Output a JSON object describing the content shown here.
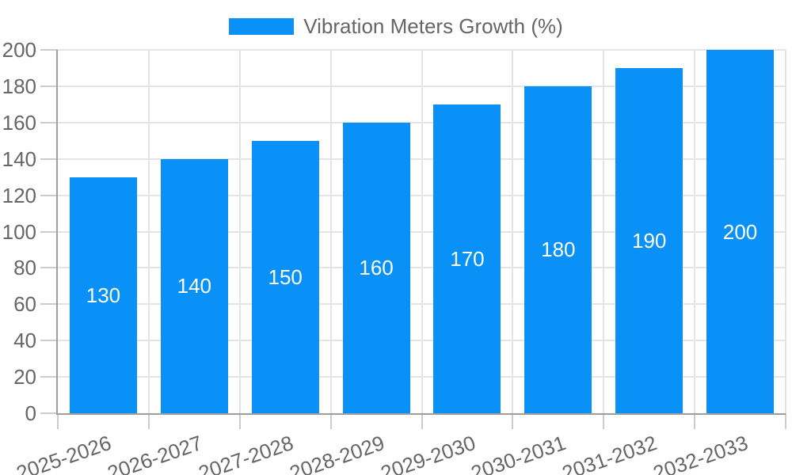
{
  "legend": {
    "label": "Vibration Meters Growth (%)"
  },
  "chart_data": {
    "type": "bar",
    "title": "Vibration Meters Growth (%)",
    "categories": [
      "2025-2026",
      "2026-2027",
      "2027-2028",
      "2028-2029",
      "2029-2030",
      "2030-2031",
      "2031-2032",
      "2032-2033"
    ],
    "series": [
      {
        "name": "Vibration Meters Growth (%)",
        "values": [
          130,
          140,
          150,
          160,
          170,
          180,
          190,
          200
        ]
      }
    ],
    "ylim": [
      0,
      200
    ],
    "ytick_step": 20,
    "ytick_labels": [
      "0",
      "20",
      "40",
      "60",
      "80",
      "100",
      "120",
      "140",
      "160",
      "180",
      "200"
    ],
    "bar_labels": [
      "130",
      "140",
      "150",
      "160",
      "170",
      "180",
      "190",
      "200"
    ],
    "grid": true,
    "legend_position": "top",
    "xlabel": "",
    "ylabel": "",
    "colors": {
      "bar": "#0991f8",
      "bar_label": "#ffffff",
      "axis_text": "#666666",
      "gridline": "#e4e4e4",
      "tick": "#cccccc",
      "axis_line": "#9e9e9e",
      "background": "#ffffff"
    }
  }
}
